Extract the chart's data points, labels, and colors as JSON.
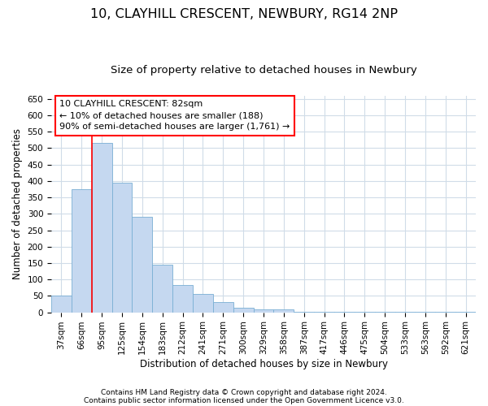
{
  "title1": "10, CLAYHILL CRESCENT, NEWBURY, RG14 2NP",
  "title2": "Size of property relative to detached houses in Newbury",
  "xlabel": "Distribution of detached houses by size in Newbury",
  "ylabel": "Number of detached properties",
  "categories": [
    "37sqm",
    "66sqm",
    "95sqm",
    "125sqm",
    "154sqm",
    "183sqm",
    "212sqm",
    "241sqm",
    "271sqm",
    "300sqm",
    "329sqm",
    "358sqm",
    "387sqm",
    "417sqm",
    "446sqm",
    "475sqm",
    "504sqm",
    "533sqm",
    "563sqm",
    "592sqm",
    "621sqm"
  ],
  "values": [
    50,
    375,
    515,
    395,
    290,
    145,
    82,
    55,
    30,
    15,
    10,
    10,
    2,
    2,
    2,
    2,
    2,
    2,
    2,
    2,
    2
  ],
  "bar_color": "#c5d8f0",
  "bar_edge_color": "#7aafd4",
  "red_line_x": 1.5,
  "annotation_title": "10 CLAYHILL CRESCENT: 82sqm",
  "annotation_line1": "← 10% of detached houses are smaller (188)",
  "annotation_line2": "90% of semi-detached houses are larger (1,761) →",
  "ylim": [
    0,
    660
  ],
  "yticks": [
    0,
    50,
    100,
    150,
    200,
    250,
    300,
    350,
    400,
    450,
    500,
    550,
    600,
    650
  ],
  "footnote1": "Contains HM Land Registry data © Crown copyright and database right 2024.",
  "footnote2": "Contains public sector information licensed under the Open Government Licence v3.0.",
  "bg_color": "#ffffff",
  "plot_bg_color": "#ffffff",
  "grid_color": "#d0dce8",
  "title1_fontsize": 11.5,
  "title2_fontsize": 9.5,
  "axis_label_fontsize": 8.5,
  "tick_fontsize": 7.5,
  "annotation_fontsize": 8,
  "footnote_fontsize": 6.5
}
